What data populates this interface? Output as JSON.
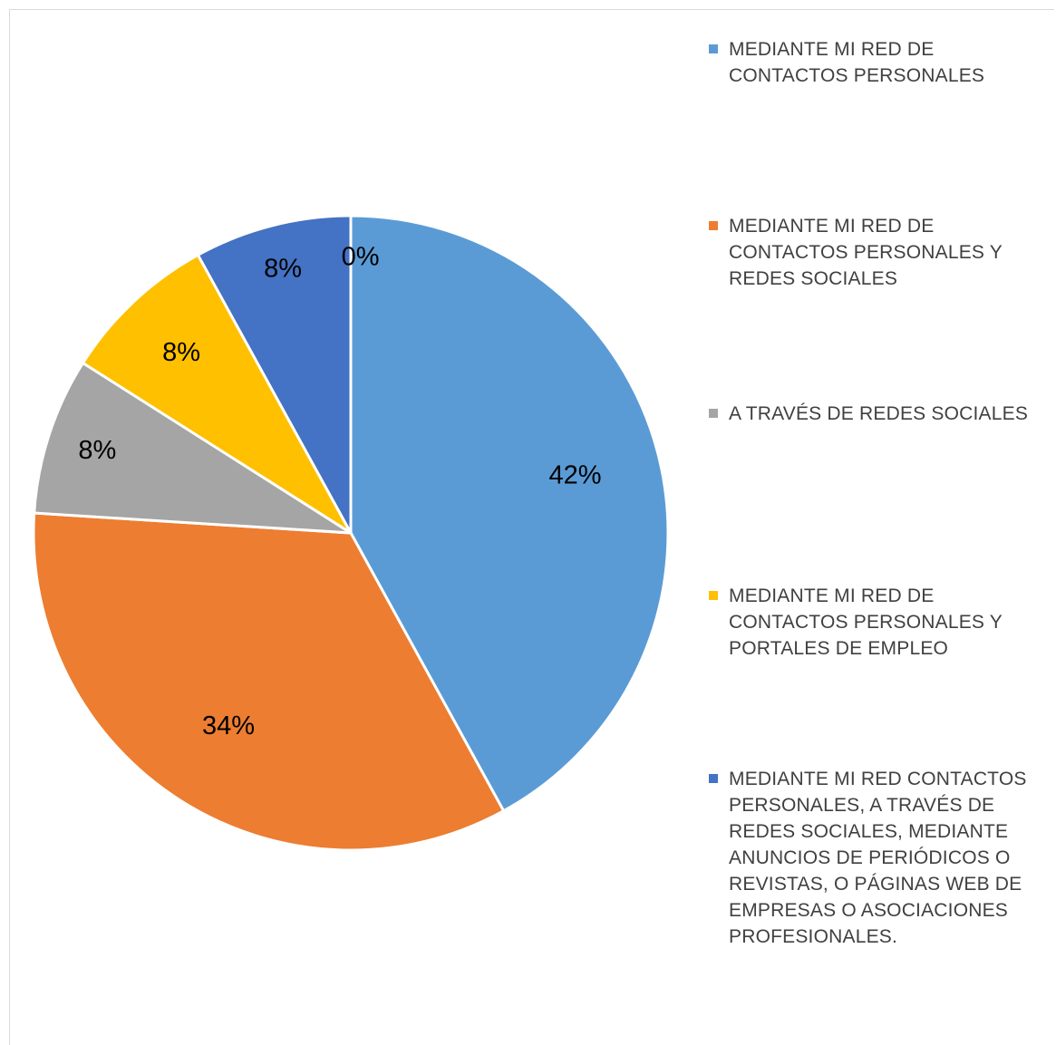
{
  "chart_data": {
    "type": "pie",
    "title": "",
    "slices": [
      {
        "label": "MEDIANTE MI RED DE\nCONTACTOS PERSONALES",
        "value": 42,
        "value_label": "42%",
        "color": "#5B9BD5"
      },
      {
        "label": "MEDIANTE MI RED DE\nCONTACTOS PERSONALES Y\nREDES SOCIALES",
        "value": 34,
        "value_label": "34%",
        "color": "#ED7D31"
      },
      {
        "label": "A TRAVÉS DE REDES SOCIALES",
        "value": 8,
        "value_label": "8%",
        "color": "#A5A5A5"
      },
      {
        "label": "MEDIANTE MI RED DE\nCONTACTOS PERSONALES Y\nPORTALES DE EMPLEO",
        "value": 8,
        "value_label": "8%",
        "color": "#FFC000"
      },
      {
        "label": "MEDIANTE MI RED CONTACTOS\nPERSONALES, A TRAVÉS DE\nREDES SOCIALES, MEDIANTE\nANUNCIOS DE PERIÓDICOS O\nREVISTAS, O PÁGINAS WEB DE\nEMPRESAS O ASOCIACIONES\nPROFESIONALES.",
        "value": 8,
        "value_label": "8%",
        "color": "#4472C4"
      }
    ],
    "extra_labels": [
      "0%"
    ],
    "legend_position": "right"
  }
}
